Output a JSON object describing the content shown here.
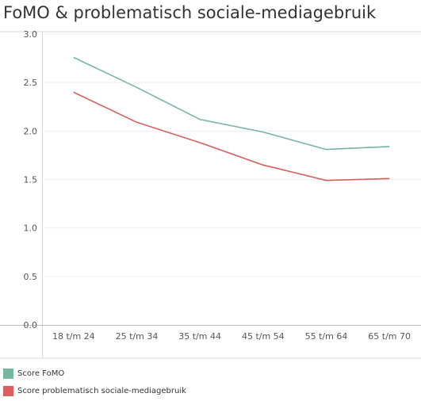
{
  "title": "FoMO & problematisch sociale-mediagebruik",
  "chart_data": {
    "type": "line",
    "title": "FoMO & problematisch sociale-mediagebruik",
    "xlabel": "",
    "ylabel": "",
    "categories": [
      "18 t/m 24",
      "25 t/m 34",
      "35 t/m 44",
      "45 t/m 54",
      "55 t/m 64",
      "65 t/m 70"
    ],
    "series": [
      {
        "name": "Score FoMO",
        "color": "#76b7a0",
        "values": [
          2.76,
          2.45,
          2.12,
          1.99,
          1.81,
          1.84
        ]
      },
      {
        "name": "Score problematisch sociale-mediagebruik",
        "color": "#d95f5f",
        "values": [
          2.4,
          2.09,
          1.88,
          1.65,
          1.49,
          1.51
        ]
      }
    ],
    "yticks": [
      "0.0",
      "0.5",
      "1.0",
      "1.5",
      "2.0",
      "2.5",
      "3.0"
    ],
    "ylim": [
      0,
      3
    ],
    "grid": true,
    "legend_position": "bottom-left"
  }
}
